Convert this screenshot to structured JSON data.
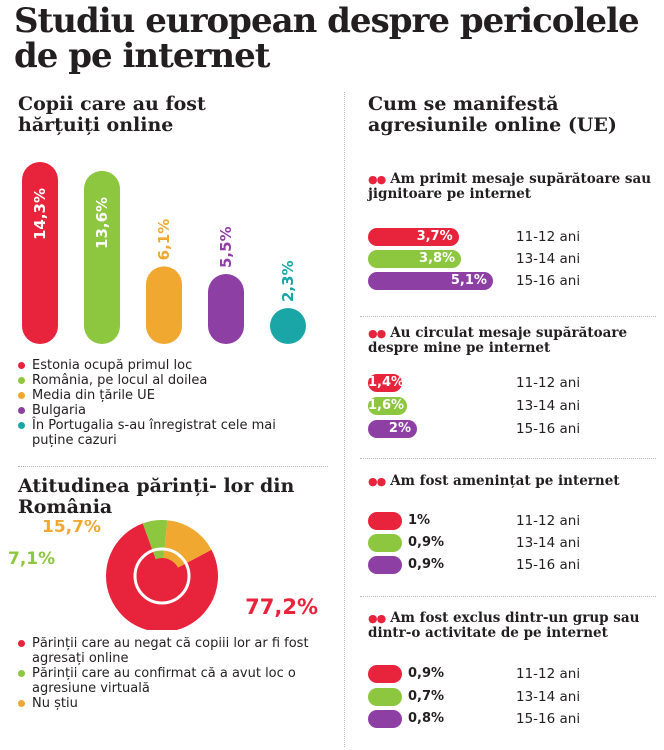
{
  "title": "Studiu european despre pericolele de pe internet",
  "colors": {
    "red": "#e8243c",
    "green": "#8dc63f",
    "orange": "#f0a830",
    "purple": "#8e3fa3",
    "teal": "#1aa6a6"
  },
  "chart_data": [
    {
      "type": "bar",
      "title": "Copii care au fost hărțuiți online",
      "categories": [
        "Estonia ocupă primul loc",
        "România, pe locul al doilea",
        "Media din țările UE",
        "Bulgaria",
        "În Portugalia s-au înregistrat cele mai puține cazuri"
      ],
      "values": [
        14.3,
        13.6,
        6.1,
        5.5,
        2.3
      ],
      "labels": [
        "14,3%",
        "13,6%",
        "6,1%",
        "5,5%",
        "2,3%"
      ],
      "colors": [
        "#e8243c",
        "#8dc63f",
        "#f0a830",
        "#8e3fa3",
        "#1aa6a6"
      ]
    },
    {
      "type": "pie",
      "title": "Atitudinea părinți- lor din România",
      "categories": [
        "Părinții care au negat că copiii lor ar fi fost agresați online",
        "Părinții care au confirmat că a avut loc o agresiune virtuală",
        "Nu știu"
      ],
      "values": [
        77.2,
        7.1,
        15.7
      ],
      "labels": [
        "77,2%",
        "7,1%",
        "15,7%"
      ],
      "colors": [
        "#e8243c",
        "#8dc63f",
        "#f0a830"
      ]
    },
    {
      "type": "bar",
      "title": "Cum se manifestă agresiunile online (UE)",
      "age_groups": [
        "11-12 ani",
        "13-14 ani",
        "15-16 ani"
      ],
      "row_colors": [
        "#e8243c",
        "#8dc63f",
        "#8e3fa3"
      ],
      "groups": [
        {
          "name": "Am primit mesaje supărătoare sau jignitoare pe internet",
          "values": [
            3.7,
            3.8,
            5.1
          ],
          "labels": [
            "3,7%",
            "3,8%",
            "5,1%"
          ]
        },
        {
          "name": "Au circulat mesaje supărătoare despre mine pe internet",
          "values": [
            1.4,
            1.6,
            2
          ],
          "labels": [
            "1,4%",
            "1,6%",
            "2%"
          ]
        },
        {
          "name": "Am fost amenințat pe internet",
          "values": [
            1,
            0.9,
            0.9
          ],
          "labels": [
            "1%",
            "0,9%",
            "0,9%"
          ]
        },
        {
          "name": "Am fost exclus dintr-un grup sau dintr-o activitate de pe internet",
          "values": [
            0.9,
            0.7,
            0.8
          ],
          "labels": [
            "0,9%",
            "0,7%",
            "0,8%"
          ]
        }
      ]
    }
  ]
}
